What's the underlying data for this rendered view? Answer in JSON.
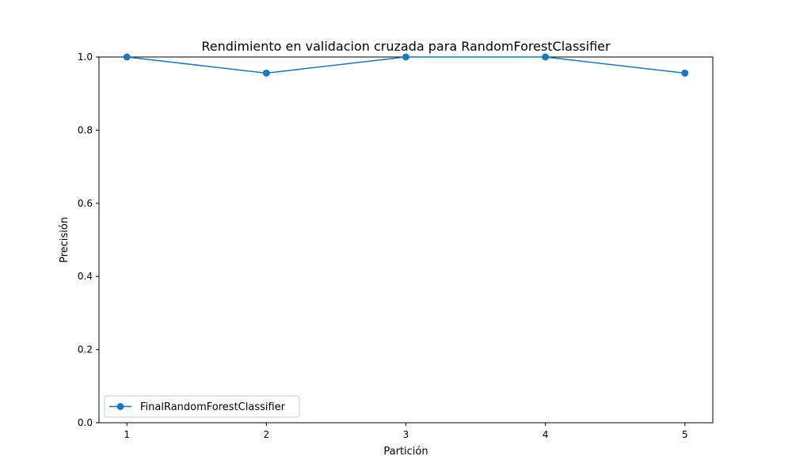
{
  "chart_data": {
    "type": "line",
    "title": "Rendimiento en validacion cruzada para RandomForestClassifier",
    "xlabel": "Partición",
    "ylabel": "Precisión",
    "x": [
      1,
      2,
      3,
      4,
      5
    ],
    "xlim": [
      0.8,
      5.2
    ],
    "ylim": [
      0.0,
      1.0
    ],
    "x_ticks": [
      1,
      2,
      3,
      4,
      5
    ],
    "y_ticks": [
      0.0,
      0.2,
      0.4,
      0.6,
      0.8,
      1.0
    ],
    "grid": false,
    "legend_position": "lower-left",
    "series": [
      {
        "name": "FinalRandomForestClassifier",
        "color": "#1f77b4",
        "marker": "circle",
        "values": [
          1.0,
          0.956,
          1.0,
          1.0,
          0.956
        ]
      }
    ]
  }
}
